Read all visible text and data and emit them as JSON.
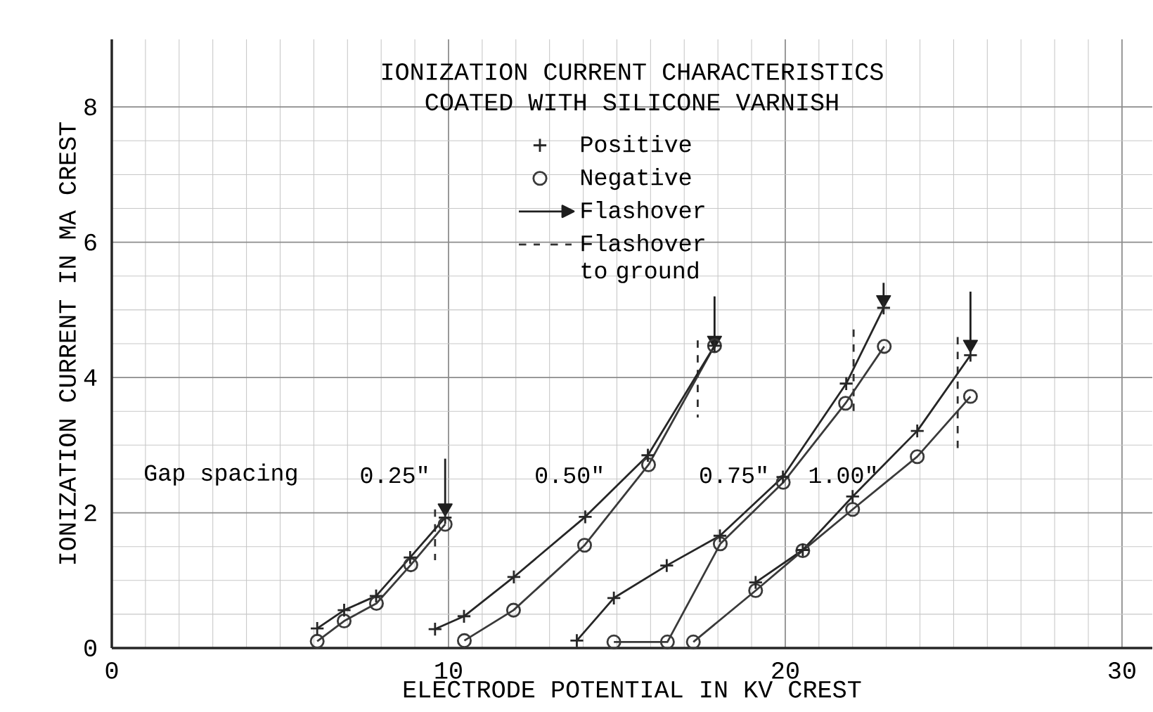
{
  "chart_data": {
    "type": "line",
    "title": "IONIZATION CURRENT CHARACTERISTICS",
    "subtitle": "COATED WITH SILICONE VARNISH",
    "xlabel": "ELECTRODE POTENTIAL IN KV CREST",
    "ylabel": "IONIZATION CURRENT IN MA CREST",
    "xlim": [
      0,
      30.9
    ],
    "ylim": [
      0,
      9.0
    ],
    "xticks": [
      0,
      10,
      20,
      30
    ],
    "yticks": [
      0,
      2,
      4,
      6,
      8
    ],
    "grid": true,
    "legend": "top",
    "annotations": [
      "Gap spacing",
      "0.25\"",
      "0.50\"",
      "0.75\"",
      "1.00\""
    ],
    "series": [
      {
        "name": "Positive",
        "color": "#262626",
        "marker": "cross",
        "line_style": "solid",
        "x": [
          6.1,
          6.9,
          7.85,
          8.86,
          9.9,
          null,
          9.6,
          10.46,
          11.94,
          14.06,
          15.92,
          17.9,
          null,
          13.81,
          14.91,
          16.48,
          18.06,
          19.93,
          21.81,
          22.92,
          null,
          19.12,
          20.52,
          22.0,
          23.92,
          25.5
        ],
        "values": [
          0.29,
          0.56,
          0.77,
          1.34,
          1.93,
          null,
          0.28,
          0.47,
          1.05,
          1.94,
          2.85,
          4.47,
          null,
          0.11,
          0.74,
          1.22,
          1.66,
          2.53,
          3.91,
          5.03,
          null,
          0.97,
          1.45,
          2.24,
          3.21,
          4.33
        ]
      },
      {
        "name": "Negative",
        "color": "#3a3a3a",
        "marker": "circle",
        "line_style": "solid",
        "x": [
          6.1,
          6.9,
          7.86,
          8.88,
          9.9,
          null,
          10.47,
          11.93,
          14.04,
          15.94,
          17.9,
          null,
          14.91,
          16.5,
          18.07,
          19.94,
          21.79,
          22.94,
          null,
          17.27,
          19.12,
          20.52,
          22.0,
          23.92,
          25.5
        ],
        "values": [
          0.1,
          0.4,
          0.66,
          1.23,
          1.83,
          null,
          0.11,
          0.56,
          1.52,
          2.71,
          4.47,
          null,
          0.09,
          0.09,
          1.54,
          2.45,
          3.62,
          4.46,
          null,
          0.09,
          0.85,
          1.44,
          2.05,
          2.83,
          3.72
        ]
      },
      {
        "name": "Flashover",
        "color": "#1e1e1e",
        "marker": "triangle",
        "line_style": "solid",
        "x": [
          9.9,
          9.9,
          null,
          17.9,
          17.9,
          null,
          22.92,
          22.92,
          null,
          25.5,
          25.5
        ],
        "values": [
          2.8,
          2.07,
          null,
          5.2,
          4.55,
          null,
          5.4,
          5.15,
          null,
          5.27,
          4.49
        ]
      },
      {
        "name": "Flashover to ground",
        "color": "#303030",
        "marker": "none",
        "line_style": "dashed",
        "x": [
          9.6,
          9.6,
          null,
          17.4,
          17.4,
          null,
          22.03,
          22.03,
          null,
          25.12,
          25.12
        ],
        "values": [
          2.05,
          1.3,
          null,
          4.55,
          3.41,
          null,
          4.71,
          3.45,
          null,
          4.6,
          2.9
        ]
      }
    ]
  }
}
